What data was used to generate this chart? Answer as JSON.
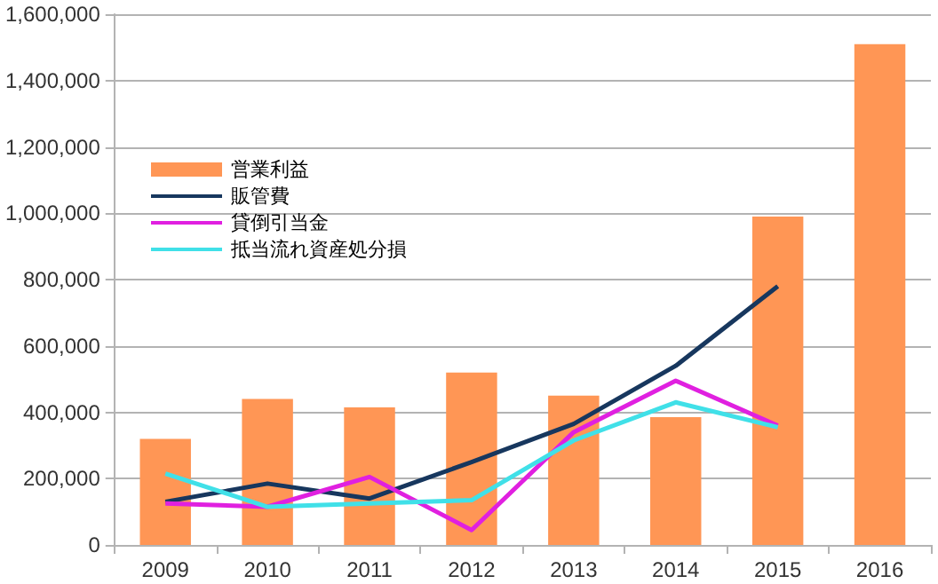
{
  "chart_data": {
    "type": "bar",
    "categories": [
      "2009",
      "2010",
      "2011",
      "2012",
      "2013",
      "2014",
      "2015",
      "2016"
    ],
    "series": [
      {
        "name": "営業利益",
        "color": "#ff9655",
        "values": [
          320000,
          440000,
          415000,
          520000,
          450000,
          385000,
          990000,
          1510000
        ]
      },
      {
        "name": "販管費",
        "type": "line",
        "color": "#17375e",
        "values": [
          130000,
          185000,
          140000,
          250000,
          365000,
          540000,
          780000,
          null
        ]
      },
      {
        "name": "貸倒引当金",
        "type": "line",
        "color": "#e020e0",
        "values": [
          125000,
          115000,
          205000,
          45000,
          340000,
          495000,
          360000,
          null
        ]
      },
      {
        "name": "抵当流れ資産処分損",
        "type": "line",
        "color": "#40e0e8",
        "values": [
          215000,
          115000,
          125000,
          135000,
          315000,
          430000,
          355000,
          null
        ]
      }
    ],
    "ylim": [
      0,
      1600000
    ],
    "yticks": [
      0,
      {
        "value": 200000,
        "label": "200,000"
      },
      {
        "value": 400000,
        "label": "400,000"
      },
      {
        "value": 600000,
        "label": "600,000"
      },
      {
        "value": 800000,
        "label": "800,000"
      },
      {
        "value": 1000000,
        "label": "1,000,000"
      },
      {
        "value": 1200000,
        "label": "1,200,000"
      },
      {
        "value": 1400000,
        "label": "1,400,000"
      },
      {
        "value": 1600000,
        "label": "1,600,000"
      }
    ],
    "grid": "y",
    "legend": "left",
    "marker": "none"
  }
}
